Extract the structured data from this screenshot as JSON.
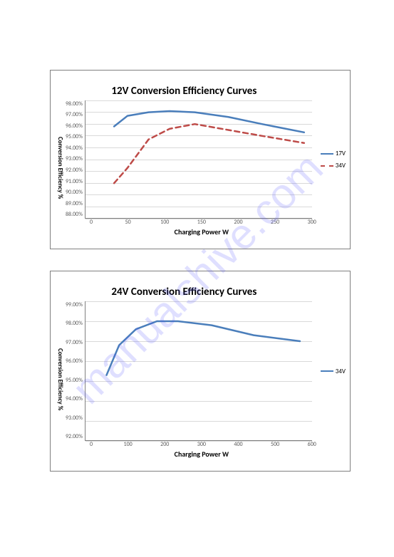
{
  "watermark_text": "manualshive.com",
  "chart1": {
    "type": "line",
    "title": "12V Conversion Efficiency Curves",
    "ylabel": "Conversion Efficiency %",
    "xlabel": "Charging Power W",
    "xlim": [
      0,
      300
    ],
    "xtick_step": 50,
    "xticks": [
      "0",
      "50",
      "100",
      "150",
      "200",
      "250",
      "300"
    ],
    "ylim": [
      88.0,
      98.0
    ],
    "ytick_step": 1.0,
    "yticks": [
      "98.00%",
      "97.00%",
      "96.00%",
      "95.00%",
      "94.00%",
      "93.00%",
      "92.00%",
      "91.00%",
      "90.00%",
      "89.00%",
      "88.00%"
    ],
    "grid_color": "#d9d9d9",
    "background_color": "#ffffff",
    "axis_color": "#808080",
    "tick_font_color": "#595959",
    "tick_fontsize": 8,
    "title_fontsize": 15,
    "label_fontsize": 10,
    "series": [
      {
        "name": "17V",
        "color": "#4a7ebb",
        "line_style": "solid",
        "line_width": 2.5,
        "x": [
          34,
          50,
          75,
          100,
          130,
          170,
          210,
          260
        ],
        "y": [
          95.8,
          96.7,
          97.0,
          97.1,
          97.0,
          96.6,
          96.0,
          95.3
        ]
      },
      {
        "name": "34V",
        "color": "#be4b48",
        "line_style": "dashed",
        "line_width": 2.5,
        "x": [
          34,
          50,
          75,
          100,
          130,
          170,
          210,
          260
        ],
        "y": [
          91.0,
          92.3,
          94.7,
          95.6,
          96.0,
          95.5,
          95.0,
          94.4
        ]
      }
    ]
  },
  "chart2": {
    "type": "line",
    "title": "24V Conversion Efficiency Curves",
    "ylabel": "Conversion Efficiency %",
    "xlabel": "Charging Power W",
    "xlim": [
      0,
      600
    ],
    "xtick_step": 100,
    "xticks": [
      "0",
      "100",
      "200",
      "300",
      "400",
      "500",
      "600"
    ],
    "ylim": [
      92.0,
      99.0
    ],
    "ytick_step": 1.0,
    "yticks": [
      "99.00%",
      "98.00%",
      "97.00%",
      "96.00%",
      "95.00%",
      "94.00%",
      "93.00%",
      "92.00%"
    ],
    "grid_color": "#d9d9d9",
    "background_color": "#ffffff",
    "axis_color": "#808080",
    "tick_font_color": "#595959",
    "tick_fontsize": 8,
    "title_fontsize": 15,
    "label_fontsize": 10,
    "series": [
      {
        "name": "34V",
        "color": "#4a7ebb",
        "line_style": "solid",
        "line_width": 2.5,
        "x": [
          50,
          80,
          120,
          170,
          220,
          300,
          400,
          510
        ],
        "y": [
          95.3,
          96.8,
          97.6,
          98.0,
          98.0,
          97.8,
          97.3,
          97.0
        ]
      }
    ]
  }
}
